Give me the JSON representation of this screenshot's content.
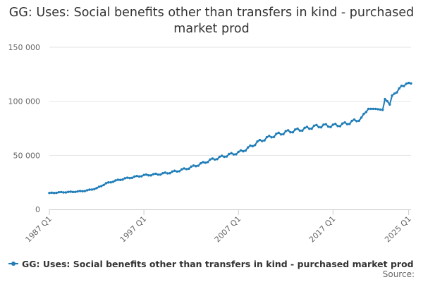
{
  "chart_data": {
    "type": "line",
    "title": "GG: Uses: Social benefits other than transfers in kind - purchased market prod",
    "xlabel": "",
    "ylabel": "",
    "x_range": [
      1987,
      2025.25
    ],
    "ylim": [
      0,
      150000
    ],
    "y_ticks": [
      0,
      50000,
      100000,
      150000
    ],
    "y_tick_labels": [
      "0",
      "50 000",
      "100 000",
      "150 000"
    ],
    "x_ticks": [
      1987,
      1997,
      2007,
      2017,
      2025
    ],
    "x_tick_labels": [
      "1987 Q1",
      "1997 Q1",
      "2007 Q1",
      "2017 Q1",
      "2025 Q1"
    ],
    "grid": true,
    "legend_position": "bottom-left",
    "series": [
      {
        "name": "GG: Uses: Social benefits other than transfers in kind - purchased market prod",
        "color": "#1f7db8",
        "anchors": [
          [
            1987.0,
            15000
          ],
          [
            1988.0,
            15700
          ],
          [
            1989.0,
            16000
          ],
          [
            1990.0,
            16500
          ],
          [
            1991.0,
            17500
          ],
          [
            1992.0,
            19500
          ],
          [
            1993.0,
            24000
          ],
          [
            1994.0,
            26500
          ],
          [
            1995.0,
            28500
          ],
          [
            1996.0,
            30000
          ],
          [
            1997.0,
            31500
          ],
          [
            1998.0,
            32200
          ],
          [
            1999.0,
            33000
          ],
          [
            2000.0,
            34500
          ],
          [
            2001.0,
            36500
          ],
          [
            2002.0,
            39000
          ],
          [
            2003.0,
            42000
          ],
          [
            2004.0,
            45500
          ],
          [
            2005.0,
            48000
          ],
          [
            2006.0,
            50500
          ],
          [
            2007.0,
            52500
          ],
          [
            2008.0,
            56500
          ],
          [
            2009.0,
            62000
          ],
          [
            2010.0,
            66000
          ],
          [
            2011.0,
            69000
          ],
          [
            2012.0,
            71500
          ],
          [
            2013.0,
            73000
          ],
          [
            2014.0,
            74500
          ],
          [
            2015.0,
            76500
          ],
          [
            2016.0,
            77500
          ],
          [
            2017.0,
            77500
          ],
          [
            2018.0,
            78500
          ],
          [
            2019.0,
            81000
          ],
          [
            2020.0,
            84000
          ],
          [
            2020.75,
            93000
          ],
          [
            2021.5,
            93000
          ],
          [
            2022.25,
            92000
          ],
          [
            2022.5,
            102000
          ],
          [
            2022.75,
            100000
          ],
          [
            2023.0,
            97000
          ],
          [
            2023.25,
            104000
          ],
          [
            2023.5,
            108000
          ],
          [
            2024.0,
            111000
          ],
          [
            2024.5,
            115000
          ],
          [
            2024.75,
            117500
          ],
          [
            2025.0,
            117000
          ],
          [
            2025.25,
            116500
          ]
        ],
        "seasonal_amplitude": 1600
      }
    ]
  },
  "legend": {
    "label": "GG: Uses: Social benefits other than transfers in kind - purchased market prod"
  },
  "source": {
    "label": "Source:"
  }
}
